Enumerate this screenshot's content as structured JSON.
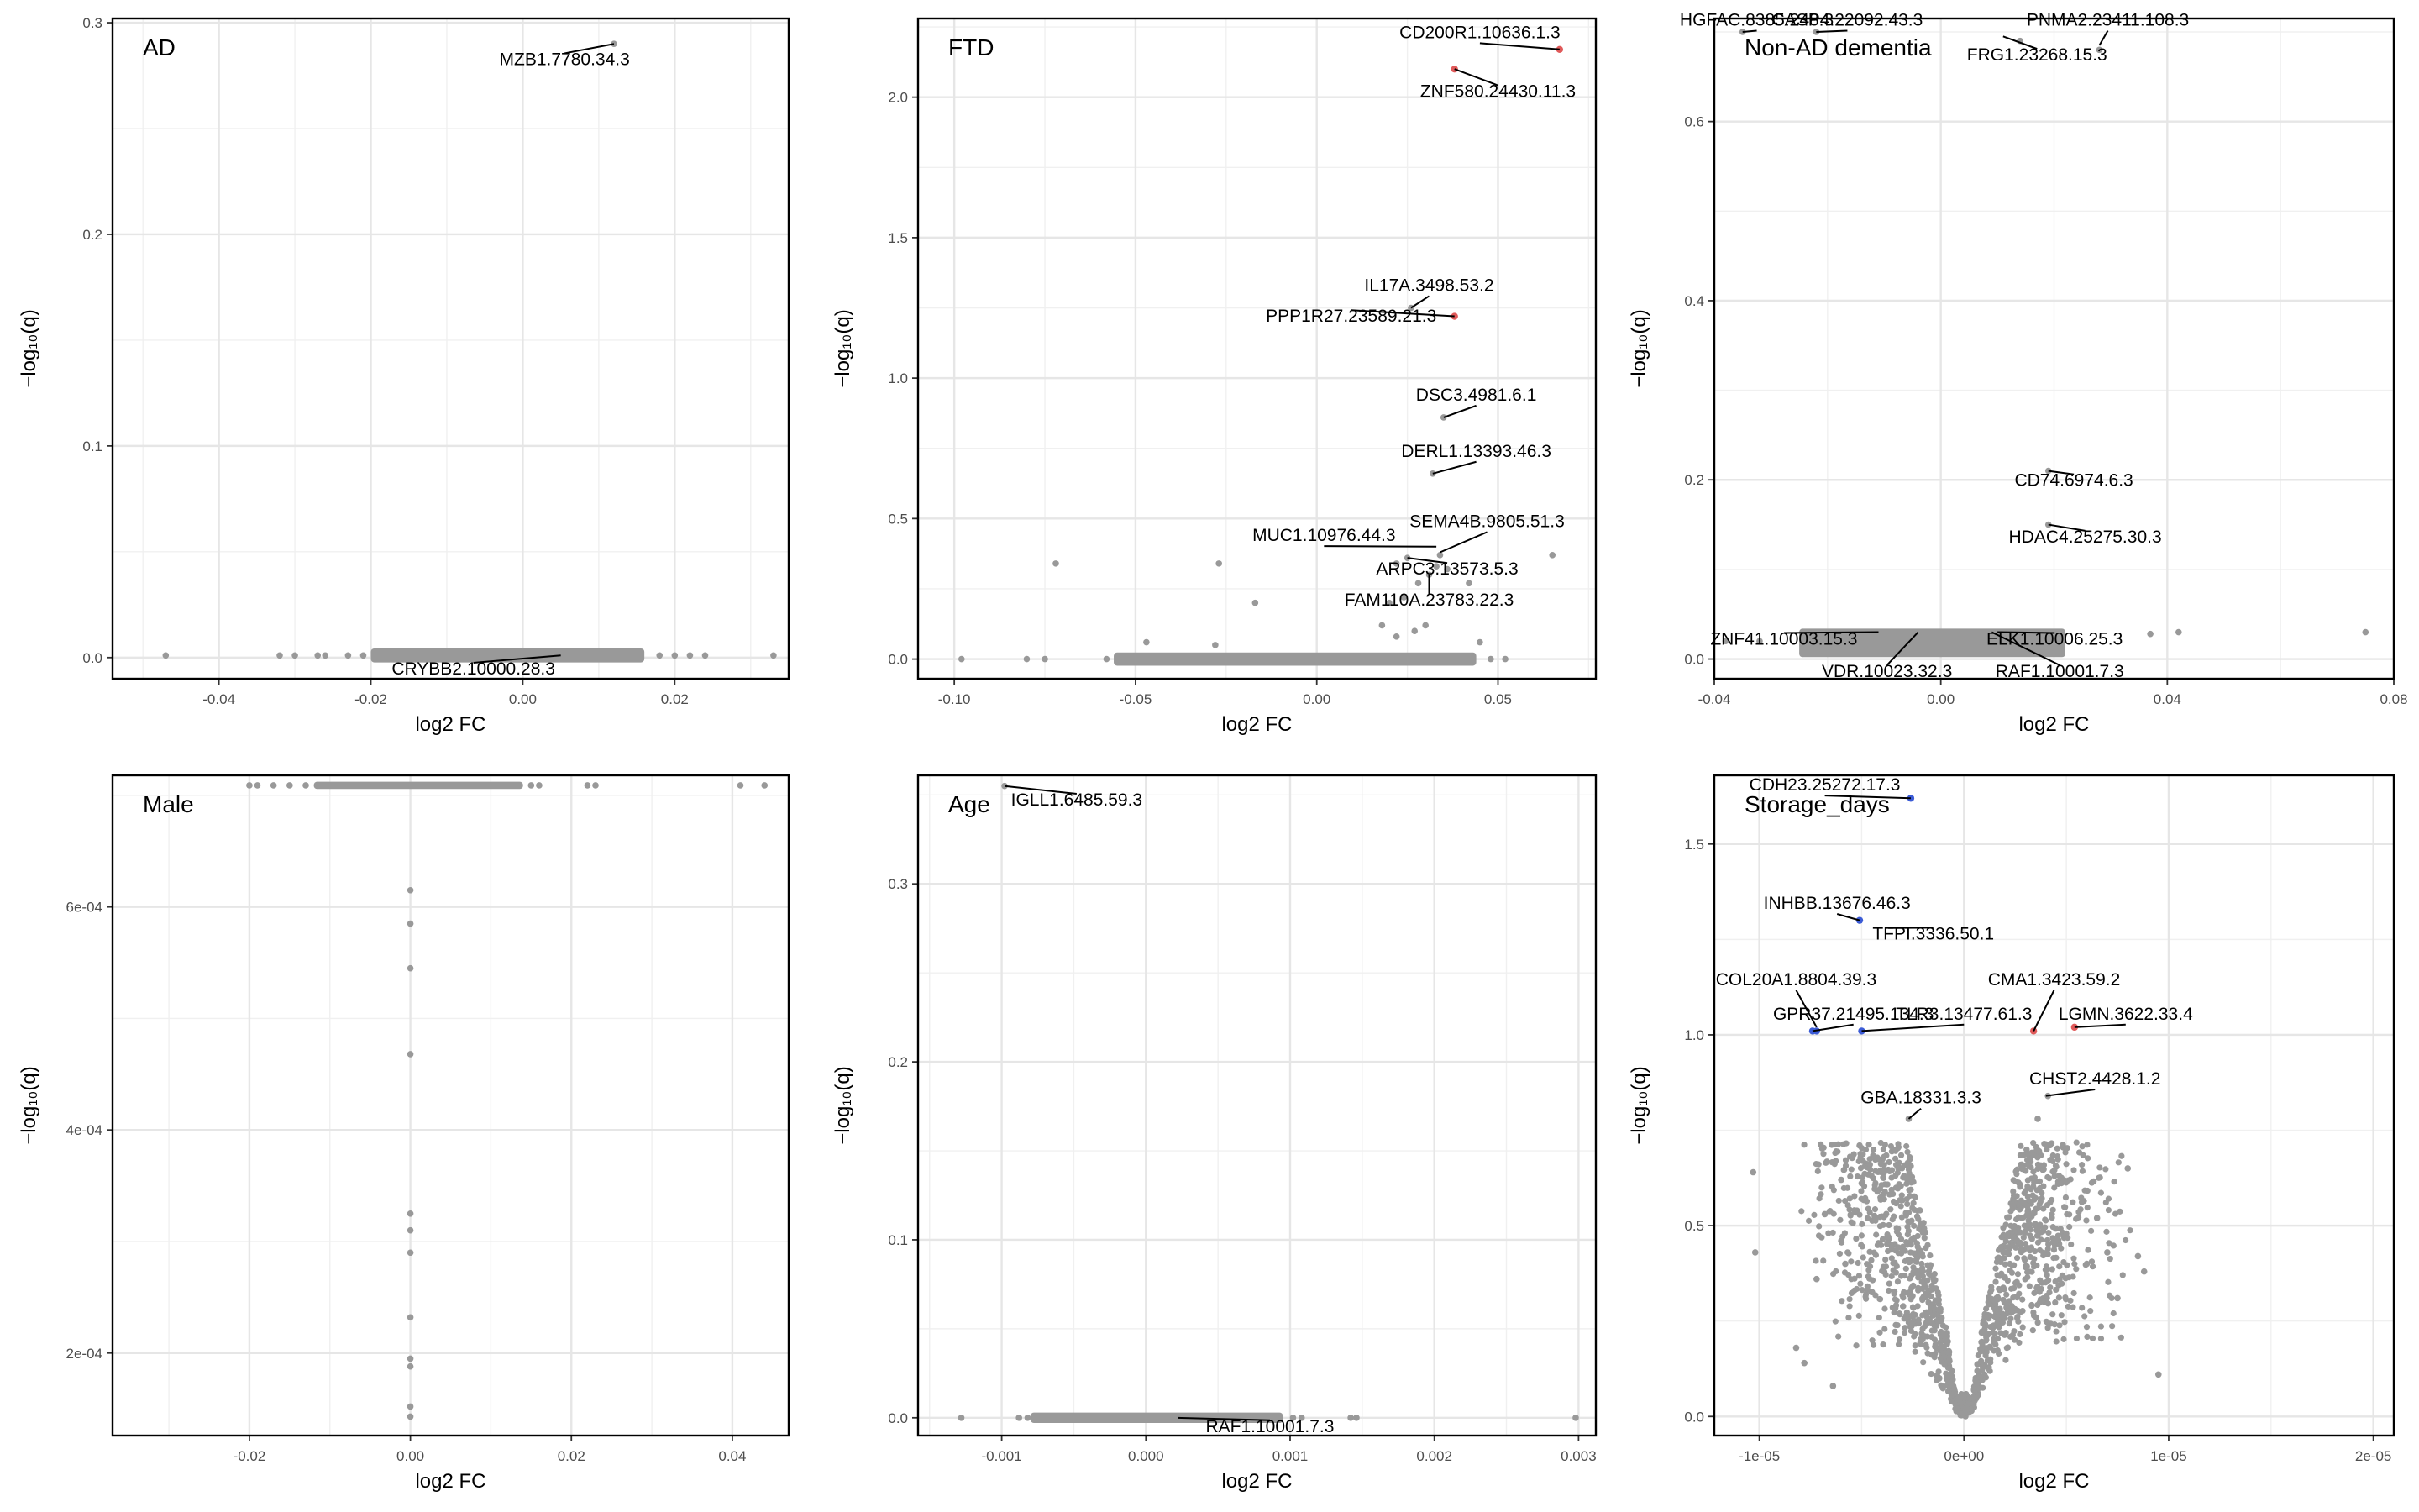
{
  "chart_data": [
    {
      "type": "scatter",
      "title": "AD",
      "xlabel": "log2 FC",
      "ylabel": "−log₁₀(q)",
      "xlim": [
        -0.054,
        0.035
      ],
      "ylim": [
        -0.01,
        0.302
      ],
      "xticks": [
        {
          "v": -0.04,
          "label": "-0.04"
        },
        {
          "v": -0.02,
          "label": "-0.02"
        },
        {
          "v": 0.0,
          "label": "0.00"
        },
        {
          "v": 0.02,
          "label": "0.02"
        }
      ],
      "yticks": [
        {
          "v": 0.0,
          "label": "0.0"
        },
        {
          "v": 0.1,
          "label": "0.1"
        },
        {
          "v": 0.2,
          "label": "0.2"
        },
        {
          "v": 0.3,
          "label": "0.3"
        }
      ],
      "grid": true,
      "points": [
        {
          "x": -0.047,
          "y": 0.001
        },
        {
          "x": -0.032,
          "y": 0.001
        },
        {
          "x": -0.03,
          "y": 0.001
        },
        {
          "x": -0.027,
          "y": 0.001
        },
        {
          "x": -0.026,
          "y": 0.001
        },
        {
          "x": -0.023,
          "y": 0.001
        },
        {
          "x": -0.021,
          "y": 0.001
        },
        {
          "x": 0.018,
          "y": 0.001
        },
        {
          "x": 0.02,
          "y": 0.001
        },
        {
          "x": 0.022,
          "y": 0.001
        },
        {
          "x": 0.024,
          "y": 0.001
        },
        {
          "x": 0.033,
          "y": 0.001
        },
        {
          "x": 0.012,
          "y": 0.29
        }
      ],
      "bands": [
        {
          "x1": -0.02,
          "x2": 0.016,
          "y": 0.001,
          "h": 0.005
        }
      ],
      "labels": [
        {
          "text": "MZB1.7780.34.3",
          "x": 0.012,
          "y": 0.29,
          "tx": 0.0055,
          "ty": 0.28
        },
        {
          "text": "CRYBB2.10000.28.3",
          "x": 0.005,
          "y": 0.001,
          "tx": -0.0065,
          "ty": -0.008
        }
      ]
    },
    {
      "type": "scatter",
      "title": "FTD",
      "xlabel": "log2 FC",
      "ylabel": "−log₁₀(q)",
      "xlim": [
        -0.11,
        0.077
      ],
      "ylim": [
        -0.07,
        2.28
      ],
      "xticks": [
        {
          "v": -0.1,
          "label": "-0.10"
        },
        {
          "v": -0.05,
          "label": "-0.05"
        },
        {
          "v": 0.0,
          "label": "0.00"
        },
        {
          "v": 0.05,
          "label": "0.05"
        }
      ],
      "yticks": [
        {
          "v": 0.0,
          "label": "0.0"
        },
        {
          "v": 0.5,
          "label": "0.5"
        },
        {
          "v": 1.0,
          "label": "1.0"
        },
        {
          "v": 1.5,
          "label": "1.5"
        },
        {
          "v": 2.0,
          "label": "2.0"
        }
      ],
      "grid": true,
      "points": [
        {
          "x": -0.098,
          "y": 0.0
        },
        {
          "x": -0.08,
          "y": 0.0
        },
        {
          "x": -0.075,
          "y": 0.0
        },
        {
          "x": -0.058,
          "y": 0.0
        },
        {
          "x": -0.072,
          "y": 0.34
        },
        {
          "x": -0.047,
          "y": 0.06
        },
        {
          "x": -0.028,
          "y": 0.05
        },
        {
          "x": -0.027,
          "y": 0.34
        },
        {
          "x": -0.017,
          "y": 0.2
        },
        {
          "x": 0.018,
          "y": 0.12
        },
        {
          "x": 0.022,
          "y": 0.08
        },
        {
          "x": 0.027,
          "y": 0.1
        },
        {
          "x": 0.03,
          "y": 0.12
        },
        {
          "x": 0.02,
          "y": 0.2
        },
        {
          "x": 0.024,
          "y": 0.22
        },
        {
          "x": 0.028,
          "y": 0.27
        },
        {
          "x": 0.031,
          "y": 0.3
        },
        {
          "x": 0.022,
          "y": 0.34
        },
        {
          "x": 0.033,
          "y": 0.33
        },
        {
          "x": 0.025,
          "y": 0.36
        },
        {
          "x": 0.034,
          "y": 0.37
        },
        {
          "x": 0.036,
          "y": 0.32
        },
        {
          "x": 0.042,
          "y": 0.27
        },
        {
          "x": 0.045,
          "y": 0.06
        },
        {
          "x": 0.048,
          "y": 0.0
        },
        {
          "x": 0.052,
          "y": 0.0
        },
        {
          "x": 0.065,
          "y": 0.37
        },
        {
          "x": 0.032,
          "y": 0.66
        },
        {
          "x": 0.035,
          "y": 0.86
        },
        {
          "x": 0.026,
          "y": 1.25
        }
      ],
      "highlights": [
        {
          "x": 0.067,
          "y": 2.17,
          "color": "#e05a5a"
        },
        {
          "x": 0.038,
          "y": 2.1,
          "color": "#e05a5a"
        },
        {
          "x": 0.038,
          "y": 1.22,
          "color": "#e05a5a"
        }
      ],
      "bands": [
        {
          "x1": -0.056,
          "x2": 0.044,
          "y": 0.0,
          "h": 0.035
        }
      ],
      "labels": [
        {
          "text": "CD200R1.10636.1.3",
          "x": 0.067,
          "y": 2.17,
          "tx": 0.045,
          "ty": 2.21
        },
        {
          "text": "ZNF580.24430.11.3",
          "x": 0.038,
          "y": 2.1,
          "tx": 0.05,
          "ty": 2.0
        },
        {
          "text": "IL17A.3498.53.2",
          "x": 0.026,
          "y": 1.25,
          "tx": 0.031,
          "ty": 1.31
        },
        {
          "text": "PPP1R27.23589.21.3",
          "x": 0.038,
          "y": 1.22,
          "tx": 0.0095,
          "ty": 1.2
        },
        {
          "text": "DSC3.4981.6.1",
          "x": 0.035,
          "y": 0.86,
          "tx": 0.044,
          "ty": 0.92
        },
        {
          "text": "DERL1.13393.46.3",
          "x": 0.032,
          "y": 0.66,
          "tx": 0.044,
          "ty": 0.72
        },
        {
          "text": "SEMA4B.9805.51.3",
          "x": 0.034,
          "y": 0.38,
          "tx": 0.047,
          "ty": 0.47
        },
        {
          "text": "MUC1.10976.44.3",
          "x": 0.033,
          "y": 0.4,
          "tx": 0.002,
          "ty": 0.42
        },
        {
          "text": "ARPC3.13573.5.3",
          "x": 0.025,
          "y": 0.36,
          "tx": 0.036,
          "ty": 0.3
        },
        {
          "text": "FAM110A.23783.22.3",
          "x": 0.031,
          "y": 0.3,
          "tx": 0.031,
          "ty": 0.19
        }
      ]
    },
    {
      "type": "scatter",
      "title": "Non-AD dementia",
      "xlabel": "log2 FC",
      "ylabel": "−log₁₀(q)",
      "xlim": [
        -0.04,
        0.08
      ],
      "ylim": [
        -0.022,
        0.715
      ],
      "xticks": [
        {
          "v": -0.04,
          "label": "-0.04"
        },
        {
          "v": 0.0,
          "label": "0.00"
        },
        {
          "v": 0.04,
          "label": "0.04"
        },
        {
          "v": 0.08,
          "label": "0.08"
        }
      ],
      "yticks": [
        {
          "v": 0.0,
          "label": "0.0"
        },
        {
          "v": 0.2,
          "label": "0.2"
        },
        {
          "v": 0.4,
          "label": "0.4"
        },
        {
          "v": 0.6,
          "label": "0.6"
        }
      ],
      "grid": true,
      "points": [
        {
          "x": -0.038,
          "y": 0.02
        },
        {
          "x": -0.032,
          "y": 0.02
        },
        {
          "x": 0.037,
          "y": 0.028
        },
        {
          "x": 0.042,
          "y": 0.03
        },
        {
          "x": 0.075,
          "y": 0.03
        },
        {
          "x": 0.019,
          "y": 0.21
        },
        {
          "x": 0.019,
          "y": 0.15
        },
        {
          "x": 0.028,
          "y": 0.68
        },
        {
          "x": -0.035,
          "y": 0.7
        },
        {
          "x": -0.022,
          "y": 0.7
        },
        {
          "x": 0.014,
          "y": 0.69
        }
      ],
      "bands": [
        {
          "x1": -0.025,
          "x2": 0.022,
          "y": 0.018,
          "h": 0.028
        }
      ],
      "labels": [
        {
          "text": "HGFAC.8385.248.3",
          "x": -0.035,
          "y": 0.7,
          "tx": -0.0325,
          "ty": 0.707
        },
        {
          "text": "CASP4.22092.43.3",
          "x": -0.022,
          "y": 0.7,
          "tx": -0.0165,
          "ty": 0.707
        },
        {
          "text": "PNMA2.23411.108.3",
          "x": 0.028,
          "y": 0.685,
          "tx": 0.0295,
          "ty": 0.707
        },
        {
          "text": "FRG1.23268.15.3",
          "x": 0.011,
          "y": 0.695,
          "tx": 0.017,
          "ty": 0.668
        },
        {
          "text": "CD74.6974.6.3",
          "x": 0.019,
          "y": 0.21,
          "tx": 0.0235,
          "ty": 0.193
        },
        {
          "text": "HDAC4.25275.30.3",
          "x": 0.019,
          "y": 0.15,
          "tx": 0.0255,
          "ty": 0.13
        },
        {
          "text": "ZNF41.10003.15.3",
          "x": -0.011,
          "y": 0.03,
          "tx": -0.0277,
          "ty": 0.016
        },
        {
          "text": "ELK1.10006.25.3",
          "x": 0.01,
          "y": 0.03,
          "tx": 0.0201,
          "ty": 0.016
        },
        {
          "text": "VDR.10023.32.3",
          "x": -0.004,
          "y": 0.03,
          "tx": -0.0095,
          "ty": -0.02
        },
        {
          "text": "RAF1.10001.7.3",
          "x": 0.009,
          "y": 0.03,
          "tx": 0.021,
          "ty": -0.02
        }
      ]
    },
    {
      "type": "scatter",
      "title": "Male",
      "xlabel": "log2 FC",
      "ylabel": "−log₁₀(q)",
      "xlim": [
        -0.037,
        0.047
      ],
      "ylim": [
        0.000126,
        0.000718
      ],
      "xticks": [
        {
          "v": -0.02,
          "label": "-0.02"
        },
        {
          "v": 0.0,
          "label": "0.00"
        },
        {
          "v": 0.02,
          "label": "0.02"
        },
        {
          "v": 0.04,
          "label": "0.04"
        }
      ],
      "yticks": [
        {
          "v": 0.0002,
          "label": "2e-04"
        },
        {
          "v": 0.0004,
          "label": "4e-04"
        },
        {
          "v": 0.0006,
          "label": "6e-04"
        }
      ],
      "grid": true,
      "points": [
        {
          "x": -0.02,
          "y": 0.000709
        },
        {
          "x": -0.019,
          "y": 0.000709
        },
        {
          "x": -0.017,
          "y": 0.000709
        },
        {
          "x": -0.015,
          "y": 0.000709
        },
        {
          "x": -0.013,
          "y": 0.000709
        },
        {
          "x": 0.015,
          "y": 0.000709
        },
        {
          "x": 0.016,
          "y": 0.000709
        },
        {
          "x": 0.022,
          "y": 0.000709
        },
        {
          "x": 0.023,
          "y": 0.000709
        },
        {
          "x": 0.041,
          "y": 0.000709
        },
        {
          "x": 0.044,
          "y": 0.000709
        },
        {
          "x": 0.0,
          "y": 0.000615
        },
        {
          "x": 0.0,
          "y": 0.000585
        },
        {
          "x": 0.0,
          "y": 0.000545
        },
        {
          "x": 0.0,
          "y": 0.000468
        },
        {
          "x": 0.0,
          "y": 0.000325
        },
        {
          "x": 0.0,
          "y": 0.00031
        },
        {
          "x": 0.0,
          "y": 0.00029
        },
        {
          "x": 0.0,
          "y": 0.000232
        },
        {
          "x": 0.0,
          "y": 0.000195
        },
        {
          "x": 0.0,
          "y": 0.000188
        },
        {
          "x": 0.0,
          "y": 0.000152
        },
        {
          "x": 0.0,
          "y": 0.000143
        }
      ],
      "bands": [
        {
          "x1": -0.012,
          "x2": 0.014,
          "y": 0.000709,
          "h": 3.5e-06
        }
      ]
    },
    {
      "type": "scatter",
      "title": "Age",
      "xlabel": "log2 FC",
      "ylabel": "−log₁₀(q)",
      "xlim": [
        -0.00158,
        0.00312
      ],
      "ylim": [
        -0.01,
        0.361
      ],
      "xticks": [
        {
          "v": -0.001,
          "label": "-0.001"
        },
        {
          "v": 0.0,
          "label": "0.000"
        },
        {
          "v": 0.001,
          "label": "0.001"
        },
        {
          "v": 0.002,
          "label": "0.002"
        },
        {
          "v": 0.003,
          "label": "0.003"
        }
      ],
      "yticks": [
        {
          "v": 0.0,
          "label": "0.0"
        },
        {
          "v": 0.1,
          "label": "0.1"
        },
        {
          "v": 0.2,
          "label": "0.2"
        },
        {
          "v": 0.3,
          "label": "0.3"
        }
      ],
      "grid": true,
      "points": [
        {
          "x": -0.00128,
          "y": 0.0
        },
        {
          "x": -0.00088,
          "y": 0.0
        },
        {
          "x": -0.00082,
          "y": 0.0
        },
        {
          "x": 0.00102,
          "y": 0.0
        },
        {
          "x": 0.00108,
          "y": 0.0
        },
        {
          "x": 0.00142,
          "y": 0.0
        },
        {
          "x": 0.00146,
          "y": 0.0
        },
        {
          "x": 0.00298,
          "y": 0.0
        },
        {
          "x": 0.00022,
          "y": 0.0
        },
        {
          "x": -0.00098,
          "y": 0.355
        }
      ],
      "bands": [
        {
          "x1": -0.0008,
          "x2": 0.00095,
          "y": 0.0,
          "h": 0.004
        }
      ],
      "labels": [
        {
          "text": "IGLL1.6485.59.3",
          "x": -0.00098,
          "y": 0.355,
          "tx": -0.00048,
          "ty": 0.344
        },
        {
          "text": "RAF1.10001.7.3",
          "x": 0.00022,
          "y": 0.0,
          "tx": 0.00086,
          "ty": -0.008
        }
      ]
    },
    {
      "type": "scatter",
      "title": "Storage_days",
      "xlabel": "log2 FC",
      "ylabel": "−log₁₀(q)",
      "xlim": [
        -1.22e-05,
        2.1e-05
      ],
      "ylim": [
        -0.05,
        1.68
      ],
      "xticks": [
        {
          "v": -1e-05,
          "label": "-1e-05"
        },
        {
          "v": 0.0,
          "label": "0e+00"
        },
        {
          "v": 1e-05,
          "label": "1e-05"
        },
        {
          "v": 2e-05,
          "label": "2e-05"
        }
      ],
      "yticks": [
        {
          "v": 0.0,
          "label": "0.0"
        },
        {
          "v": 0.5,
          "label": "0.5"
        },
        {
          "v": 1.0,
          "label": "1.0"
        },
        {
          "v": 1.5,
          "label": "1.5"
        }
      ],
      "grid": true,
      "points": [
        {
          "x": -1.03e-05,
          "y": 0.64
        },
        {
          "x": -1.02e-05,
          "y": 0.43
        },
        {
          "x": -8.2e-06,
          "y": 0.18
        },
        {
          "x": -7.8e-06,
          "y": 0.14
        },
        {
          "x": -7.2e-06,
          "y": 0.36
        },
        {
          "x": -6.8e-06,
          "y": 0.53
        },
        {
          "x": -6.4e-06,
          "y": 0.08
        },
        {
          "x": -6e-06,
          "y": 0.62
        },
        {
          "x": -5.8e-06,
          "y": 0.4
        },
        {
          "x": -5.1e-06,
          "y": 0.71
        },
        {
          "x": -4.6e-06,
          "y": 0.66
        },
        {
          "x": 6e-06,
          "y": 0.4
        },
        {
          "x": 6.5e-06,
          "y": 0.52
        },
        {
          "x": 7e-06,
          "y": 0.43
        },
        {
          "x": 7.5e-06,
          "y": 0.31
        },
        {
          "x": 8e-06,
          "y": 0.65
        },
        {
          "x": 8.5e-06,
          "y": 0.42
        },
        {
          "x": 8.8e-06,
          "y": 0.38
        },
        {
          "x": 9.5e-06,
          "y": 0.11
        },
        {
          "x": 2.22e-05,
          "y": 0.31
        },
        {
          "x": 4.6e-06,
          "y": 0.61
        },
        {
          "x": 4.1e-06,
          "y": 0.84
        },
        {
          "x": 3.6e-06,
          "y": 0.78
        },
        {
          "x": -2.7e-06,
          "y": 0.78
        }
      ],
      "highlights": [
        {
          "x": -2.6e-06,
          "y": 1.62,
          "color": "#3b5bd6"
        },
        {
          "x": -5.1e-06,
          "y": 1.3,
          "color": "#3b5bd6"
        },
        {
          "x": -7.4e-06,
          "y": 1.01,
          "color": "#3b5bd6"
        },
        {
          "x": -7.2e-06,
          "y": 1.01,
          "color": "#3b5bd6"
        },
        {
          "x": -5e-06,
          "y": 1.01,
          "color": "#3b5bd6"
        },
        {
          "x": 3.4e-06,
          "y": 1.01,
          "color": "#e05a5a"
        },
        {
          "x": 5.4e-06,
          "y": 1.02,
          "color": "#e05a5a"
        }
      ],
      "volcano": {
        "halfwidth": 8.2e-06,
        "peak": 0.72
      },
      "labels": [
        {
          "text": "CDH23.25272.17.3",
          "x": -2.6e-06,
          "y": 1.62,
          "tx": -6.8e-06,
          "ty": 1.64
        },
        {
          "text": "INHBB.13676.46.3",
          "x": -5.1e-06,
          "y": 1.3,
          "tx": -6.2e-06,
          "ty": 1.33
        },
        {
          "text": "TFPI.3336.50.1",
          "x": -3.7e-06,
          "y": 1.28,
          "tx": -1.5e-06,
          "ty": 1.25
        },
        {
          "text": "COL20A1.8804.39.3",
          "x": -7.2e-06,
          "y": 1.02,
          "tx": -8.2e-06,
          "ty": 1.13
        },
        {
          "text": "GPR37.21495.134.3",
          "x": -7.4e-06,
          "y": 1.01,
          "tx": -5.4e-06,
          "ty": 1.04
        },
        {
          "text": "TLR3.13477.61.3",
          "x": -5e-06,
          "y": 1.01,
          "tx": 0.0,
          "ty": 1.04
        },
        {
          "text": "CMA1.3423.59.2",
          "x": 3.4e-06,
          "y": 1.01,
          "tx": 4.4e-06,
          "ty": 1.13
        },
        {
          "text": "LGMN.3622.33.4",
          "x": 5.4e-06,
          "y": 1.02,
          "tx": 7.9e-06,
          "ty": 1.04
        },
        {
          "text": "CHST2.4428.1.2",
          "x": 4e-06,
          "y": 0.84,
          "tx": 6.4e-06,
          "ty": 0.87
        },
        {
          "text": "GBA.18331.3.3",
          "x": -2.7e-06,
          "y": 0.78,
          "tx": -2.1e-06,
          "ty": 0.82
        }
      ]
    }
  ]
}
